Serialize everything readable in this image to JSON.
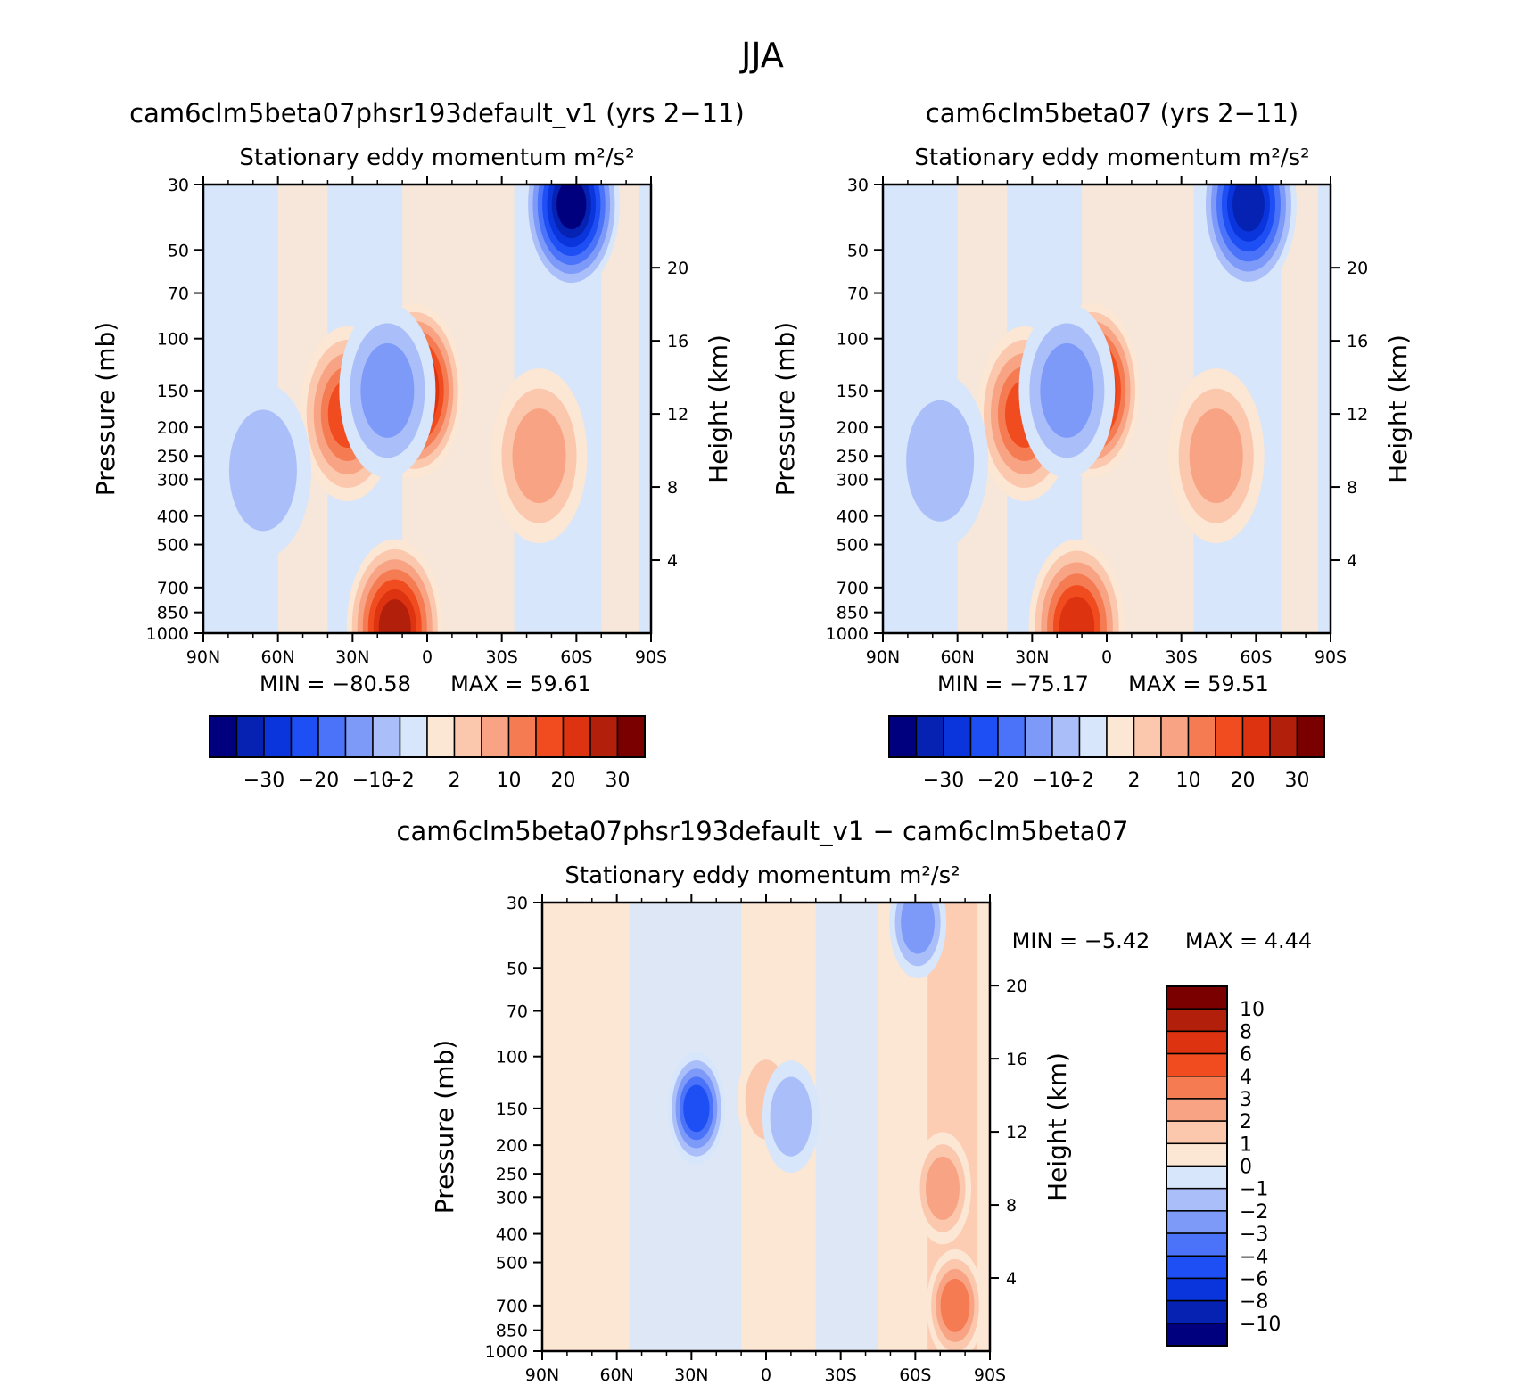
{
  "figure": {
    "title": "JJA"
  },
  "chart_data": [
    {
      "type": "heatmap",
      "title": "cam6clm5beta07phsr193default_v1 (yrs 2-11)",
      "subtitle": "Stationary eddy momentum",
      "units": "m²/s²",
      "ylabel": "Pressure (mb)",
      "y2label": "Height (km)",
      "x_ticks": [
        "90N",
        "60N",
        "30N",
        "0",
        "30S",
        "60S",
        "90S"
      ],
      "y_ticks": [
        "30",
        "50",
        "70",
        "100",
        "150",
        "200",
        "250",
        "300",
        "400",
        "500",
        "700",
        "850",
        "1000"
      ],
      "y2_ticks": [
        "4",
        "8",
        "12",
        "16",
        "20"
      ],
      "stats": {
        "min_label": "MIN =",
        "min": "-80.58",
        "max_label": "MAX =",
        "max": "59.61"
      },
      "colorbar_labels": [
        "-30",
        "-20",
        "-10",
        "-2",
        "2",
        "10",
        "20",
        "30"
      ],
      "features": [
        {
          "lat": -58,
          "p": 35,
          "value": -30
        },
        {
          "lat": 5,
          "p": 150,
          "value": 59.61
        },
        {
          "lat": 32,
          "p": 180,
          "value": 15
        },
        {
          "lat": 16,
          "p": 150,
          "value": -8
        },
        {
          "lat": 13,
          "p": 950,
          "value": 25
        },
        {
          "lat": -45,
          "p": 250,
          "value": 8
        },
        {
          "lat": 66,
          "p": 280,
          "value": -4
        }
      ]
    },
    {
      "type": "heatmap",
      "title": "cam6clm5beta07 (yrs 2-11)",
      "subtitle": "Stationary eddy momentum",
      "units": "m²/s²",
      "ylabel": "Pressure (mb)",
      "y2label": "Height (km)",
      "x_ticks": [
        "90N",
        "60N",
        "30N",
        "0",
        "30S",
        "60S",
        "90S"
      ],
      "y_ticks": [
        "30",
        "50",
        "70",
        "100",
        "150",
        "200",
        "250",
        "300",
        "400",
        "500",
        "700",
        "850",
        "1000"
      ],
      "y2_ticks": [
        "4",
        "8",
        "12",
        "16",
        "20"
      ],
      "stats": {
        "min_label": "MIN =",
        "min": "-75.17",
        "max_label": "MAX =",
        "max": "59.51"
      },
      "colorbar_labels": [
        "-30",
        "-20",
        "-10",
        "-2",
        "2",
        "10",
        "20",
        "30"
      ],
      "features": [
        {
          "lat": -57,
          "p": 35,
          "value": -28
        },
        {
          "lat": 6,
          "p": 150,
          "value": 59.51
        },
        {
          "lat": 33,
          "p": 180,
          "value": 15
        },
        {
          "lat": 16,
          "p": 150,
          "value": -7
        },
        {
          "lat": 12,
          "p": 950,
          "value": 24
        },
        {
          "lat": -44,
          "p": 250,
          "value": 8
        },
        {
          "lat": 67,
          "p": 260,
          "value": -4
        }
      ]
    },
    {
      "type": "heatmap",
      "title": "cam6clm5beta07phsr193default_v1 - cam6clm5beta07",
      "subtitle": "Stationary eddy momentum",
      "units": "m²/s²",
      "ylabel": "Pressure (mb)",
      "y2label": "Height (km)",
      "x_ticks": [
        "90N",
        "60N",
        "30N",
        "0",
        "30S",
        "60S",
        "90S"
      ],
      "y_ticks": [
        "30",
        "50",
        "70",
        "100",
        "150",
        "200",
        "250",
        "300",
        "400",
        "500",
        "700",
        "850",
        "1000"
      ],
      "y2_ticks": [
        "4",
        "8",
        "12",
        "16",
        "20"
      ],
      "stats": {
        "min_label": "MIN =",
        "min": "-5.42",
        "max_label": "MAX =",
        "max": "4.44"
      },
      "colorbar_labels": [
        "10",
        "8",
        "6",
        "4",
        "3",
        "2",
        "1",
        "0",
        "-1",
        "-2",
        "-3",
        "-4",
        "-6",
        "-8",
        "-10"
      ],
      "features": [
        {
          "lat": 28,
          "p": 150,
          "value": -4
        },
        {
          "lat": -71,
          "p": 280,
          "value": 2.5
        },
        {
          "lat": -76,
          "p": 700,
          "value": 3
        },
        {
          "lat": -61,
          "p": 35,
          "value": -2
        },
        {
          "lat": 0,
          "p": 140,
          "value": 1.5
        },
        {
          "lat": -10,
          "p": 160,
          "value": -1.5
        }
      ]
    }
  ],
  "colorbar_colors": [
    "#00007f",
    "#0522b3",
    "#0a34dc",
    "#1e4ff5",
    "#4a73f9",
    "#7d9af9",
    "#aabffa",
    "#d7e6fa",
    "#fce6d4",
    "#fbc7ad",
    "#f8a484",
    "#f57b52",
    "#f14c1f",
    "#dd3310",
    "#b21f0a",
    "#7a0000"
  ]
}
